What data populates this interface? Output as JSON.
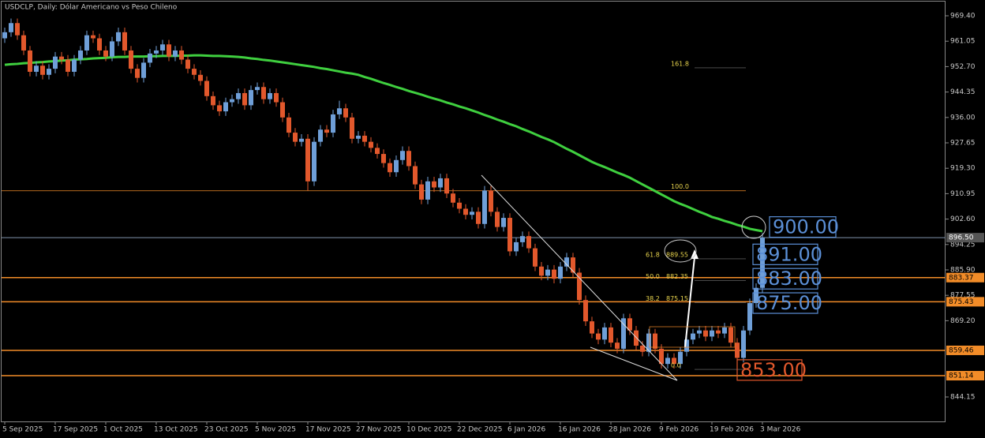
{
  "chart_data": {
    "type": "candlestick",
    "title": "USDCLP, Daily: Dólar Americano vs Peso Chileno",
    "categories": [
      "5 Sep 2025",
      null,
      null,
      null,
      null,
      null,
      null,
      null,
      "17 Sep 2025",
      null,
      null,
      null,
      null,
      null,
      null,
      null,
      "1 Oct 2025",
      null,
      null,
      null,
      null,
      null,
      null,
      null,
      "13 Oct 2025",
      null,
      null,
      null,
      null,
      null,
      null,
      null,
      "23 Oct 2025",
      null,
      null,
      null,
      null,
      null,
      null,
      null,
      "5 Nov 2025",
      null,
      null,
      null,
      null,
      null,
      null,
      null,
      "17 Nov 2025",
      null,
      null,
      null,
      null,
      null,
      null,
      null,
      "27 Nov 2025",
      null,
      null,
      null,
      null,
      null,
      null,
      null,
      "10 Dec 2025",
      null,
      null,
      null,
      null,
      null,
      null,
      null,
      "22 Dec 2025",
      null,
      null,
      null,
      null,
      null,
      null,
      null,
      "6 Jan 2026",
      null,
      null,
      null,
      null,
      null,
      null,
      null,
      "16 Jan 2026",
      null,
      null,
      null,
      null,
      null,
      null,
      null,
      "28 Jan 2026",
      null,
      null,
      null,
      null,
      null,
      null,
      null,
      "9 Feb 2026",
      null,
      null,
      null,
      null,
      null,
      null,
      null,
      "19 Feb 2026",
      null,
      null,
      null,
      null,
      null,
      null,
      null,
      "3 Mar 2026"
    ],
    "open": [
      962,
      964,
      967,
      963,
      958,
      951,
      953,
      950,
      952,
      956,
      955,
      951,
      955,
      958,
      963,
      962,
      958,
      956,
      961,
      964,
      958,
      952,
      949,
      954,
      957,
      958,
      960,
      956,
      958,
      955,
      952,
      950,
      948,
      943,
      940,
      938,
      941,
      942,
      944,
      940,
      945,
      946,
      942,
      944,
      941,
      936,
      931,
      928,
      929,
      915,
      928,
      932,
      931,
      937,
      939,
      936,
      929,
      930,
      928,
      926,
      924,
      921,
      918,
      922,
      925,
      920,
      914,
      909,
      915,
      913,
      916,
      911,
      908,
      906,
      904,
      905,
      901,
      912,
      905,
      900,
      903,
      892,
      895,
      897,
      893,
      887,
      884,
      886,
      883,
      887,
      890,
      885,
      876,
      869,
      865,
      863,
      867,
      862,
      860,
      870,
      866,
      861,
      859,
      865,
      860,
      855,
      857,
      855,
      859,
      863,
      865,
      866,
      864,
      866,
      865,
      867,
      862,
      857,
      866,
      875,
      880
    ],
    "high": [
      965.5,
      968.5,
      968.5,
      964.5,
      959.5,
      954.5,
      954.5,
      953.5,
      957.5,
      957.5,
      956.5,
      956.5,
      959.5,
      964.5,
      964.5,
      963.5,
      959.5,
      962.5,
      965.5,
      965.5,
      959.5,
      953.5,
      955.5,
      958.5,
      959.5,
      961.5,
      961.5,
      959.5,
      959.5,
      956.5,
      953.5,
      951.5,
      949.5,
      944.5,
      941.5,
      942.5,
      943.5,
      945.5,
      945.5,
      946.5,
      947.5,
      947.5,
      945.5,
      945.5,
      942.5,
      937.5,
      932.5,
      930.5,
      930.5,
      929.5,
      933.5,
      933.5,
      938.5,
      941.5,
      940.5,
      937.5,
      931.5,
      931.5,
      929.5,
      927.5,
      925.5,
      922.5,
      923.5,
      926.5,
      926.5,
      921.5,
      915.5,
      916.5,
      916.5,
      917.5,
      917.5,
      912.5,
      909.5,
      907.5,
      906.5,
      906.5,
      913.5,
      913.5,
      906.5,
      904.5,
      904.5,
      896.5,
      898.5,
      898.5,
      894.5,
      888.5,
      887.5,
      887.5,
      888.5,
      891.5,
      891.5,
      886.5,
      877.5,
      870.5,
      866.5,
      868.5,
      868.5,
      863.5,
      871.5,
      871.5,
      867.5,
      862.5,
      866.5,
      866.5,
      861.5,
      858.5,
      858.5,
      860.5,
      864.5,
      866.5,
      867.5,
      867.5,
      867.5,
      867.5,
      868.5,
      868.5,
      863.5,
      867.5,
      876.5,
      881.5,
      898
    ],
    "low": [
      960.5,
      962.5,
      961.5,
      956.5,
      949.5,
      949.5,
      948.5,
      948.5,
      950.5,
      953.5,
      949.5,
      949.5,
      953.5,
      956.5,
      960.5,
      956.5,
      954.5,
      954.5,
      959.5,
      956.5,
      950.5,
      947.5,
      947.5,
      952.5,
      955.5,
      956.5,
      954.5,
      954.5,
      953.5,
      950.5,
      948.5,
      946.5,
      941.5,
      938.5,
      936.5,
      936.5,
      939.5,
      940.5,
      938.5,
      938.5,
      943.5,
      940.5,
      940.5,
      939.5,
      934.5,
      929.5,
      926.5,
      926.5,
      912,
      913.5,
      926.5,
      929.5,
      929.5,
      935.5,
      934.5,
      927.5,
      927.5,
      926.5,
      924.5,
      922.5,
      919.5,
      916.5,
      916.5,
      920.5,
      918.5,
      912.5,
      907.5,
      907.5,
      911.5,
      911.5,
      909.5,
      906.5,
      904.5,
      902.5,
      902.5,
      899.5,
      899.5,
      903.5,
      898.5,
      898.5,
      890.5,
      890.5,
      893.5,
      891.5,
      885.5,
      882.5,
      882.5,
      881.5,
      881.5,
      885.5,
      883.5,
      874.5,
      867.5,
      863.5,
      861.5,
      861.5,
      860.5,
      858.5,
      858.5,
      864.5,
      859.5,
      857.5,
      857.5,
      858.5,
      853.5,
      853.5,
      853.5,
      853.5,
      857.5,
      861.5,
      863.5,
      862.5,
      862.5,
      863.5,
      863.5,
      860.5,
      855.5,
      855.5,
      864.5,
      873.5,
      878.5
    ],
    "close": [
      964,
      967,
      963,
      958,
      951,
      953,
      950,
      952,
      956,
      955,
      951,
      955,
      958,
      963,
      962,
      958,
      956,
      961,
      964,
      958,
      952,
      949,
      954,
      957,
      958,
      960,
      956,
      958,
      955,
      952,
      950,
      948,
      943,
      940,
      938,
      941,
      942,
      944,
      940,
      945,
      946,
      942,
      944,
      941,
      936,
      931,
      928,
      929,
      915,
      928,
      932,
      931,
      937,
      939,
      936,
      929,
      930,
      928,
      926,
      924,
      921,
      918,
      922,
      925,
      920,
      914,
      909,
      915,
      913,
      916,
      911,
      908,
      906,
      904,
      905,
      901,
      912,
      905,
      900,
      903,
      892,
      895,
      897,
      893,
      887,
      884,
      886,
      883,
      887,
      890,
      885,
      876,
      869,
      865,
      863,
      867,
      862,
      860,
      870,
      866,
      861,
      859,
      865,
      860,
      855,
      857,
      855,
      859,
      863,
      865,
      866,
      864,
      866,
      865,
      867,
      862,
      857,
      866,
      875,
      880,
      896.5
    ],
    "up_color": "#6f9fd8",
    "down_color": "#e2582c",
    "ma": {
      "color": "#3fcf3f",
      "values": [
        953.3,
        953.5,
        953.6,
        953.8,
        953.9,
        954.1,
        954.2,
        954.4,
        954.5,
        954.7,
        954.8,
        955.0,
        955.1,
        955.2,
        955.4,
        955.5,
        955.6,
        955.8,
        955.9,
        955.9,
        956.0,
        956.0,
        956.0,
        956.1,
        956.1,
        956.2,
        956.2,
        956.2,
        956.3,
        956.3,
        956.4,
        956.4,
        956.3,
        956.2,
        956.2,
        956.1,
        956.0,
        955.9,
        955.7,
        955.4,
        955.2,
        954.9,
        954.7,
        954.4,
        954.1,
        953.8,
        953.5,
        953.2,
        952.9,
        952.6,
        952.2,
        951.9,
        951.5,
        951.1,
        950.7,
        950.4,
        950.0,
        949.3,
        948.7,
        948.0,
        947.3,
        946.7,
        946.0,
        945.4,
        944.7,
        944.1,
        943.5,
        942.8,
        942.2,
        941.6,
        940.9,
        940.3,
        939.6,
        939.0,
        938.3,
        937.6,
        936.8,
        936.1,
        935.3,
        934.6,
        933.8,
        933.1,
        932.2,
        931.4,
        930.5,
        929.6,
        928.8,
        927.9,
        926.8,
        925.7,
        924.7,
        923.6,
        922.5,
        921.4,
        920.5,
        919.7,
        918.8,
        917.9,
        917.1,
        916.2,
        915.1,
        914.0,
        912.9,
        911.8,
        910.7,
        909.6,
        908.5,
        907.6,
        906.8,
        905.9,
        905.0,
        904.2,
        903.3,
        902.7,
        902.0,
        901.4,
        900.7,
        900.1,
        899.4,
        899.0,
        898.6
      ]
    },
    "ylim": [
      835.85,
      974.59
    ],
    "yticks": [
      {
        "value": 969.4,
        "label": "969.40"
      },
      {
        "value": 961.05,
        "label": "961.05"
      },
      {
        "value": 952.7,
        "label": "952.70"
      },
      {
        "value": 944.35,
        "label": "944.35"
      },
      {
        "value": 936,
        "label": "936.00"
      },
      {
        "value": 927.65,
        "label": "927.65"
      },
      {
        "value": 919.3,
        "label": "919.30"
      },
      {
        "value": 910.95,
        "label": "910.95"
      },
      {
        "value": 902.6,
        "label": "902.60"
      },
      {
        "value": 894.25,
        "label": "894.25"
      },
      {
        "value": 885.9,
        "label": "885.90"
      },
      {
        "value": 877.55,
        "label": "877.55"
      },
      {
        "value": 869.2,
        "label": "869.20"
      },
      {
        "value": 844.15,
        "label": "844.15"
      }
    ],
    "levels": {
      "color": "#f28c28",
      "values": [
        883.37,
        875.43,
        859.46,
        851.14
      ]
    },
    "current": {
      "value": 896.5,
      "label": "896.50"
    },
    "fib": [
      {
        "label": "161.8",
        "value": 952.3
      },
      {
        "label": "100.0",
        "value": 911.9
      },
      {
        "label": "61.8",
        "price": 889.55
      },
      {
        "label": "50.0",
        "price": 882.35
      },
      {
        "label": "38.2",
        "price": 875.15
      },
      {
        "label": "0.0",
        "value": 853.2
      }
    ],
    "targets": [
      {
        "value": 900,
        "label": "900.00",
        "color": "#5b8fd6"
      },
      {
        "value": 891,
        "label": "891.00",
        "color": "#5b8fd6"
      },
      {
        "value": 883,
        "label": "883.00",
        "color": "#5b8fd6"
      },
      {
        "value": 875,
        "label": "875.00",
        "color": "#5b8fd6"
      },
      {
        "value": 853,
        "label": "853.00",
        "color": "#e2582c"
      }
    ]
  }
}
